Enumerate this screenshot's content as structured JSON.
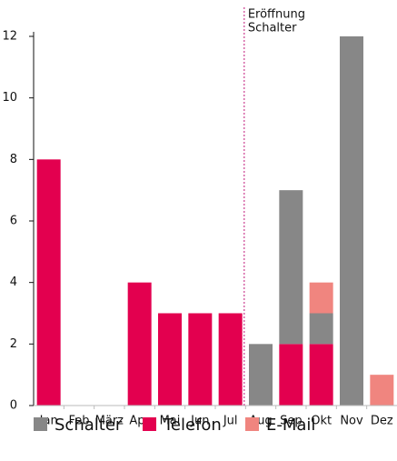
{
  "chart_data": {
    "type": "stacked_bar",
    "categories": [
      "Jan",
      "Feb",
      "März",
      "Apr",
      "Mai",
      "Jun",
      "Jul",
      "Aug",
      "Sep",
      "Okt",
      "Nov",
      "Dez"
    ],
    "series": [
      {
        "name": "Schalter",
        "color": "#878787",
        "values": [
          0,
          0,
          0,
          0,
          0,
          0,
          0,
          2,
          5,
          1,
          12,
          0
        ]
      },
      {
        "name": "Telefon",
        "color": "#e3004f",
        "values": [
          8,
          0,
          0,
          4,
          3,
          3,
          3,
          0,
          2,
          2,
          0,
          0
        ]
      },
      {
        "name": "E-Mail",
        "color": "#f0857f",
        "values": [
          0,
          0,
          0,
          0,
          0,
          0,
          0,
          0,
          0,
          1,
          0,
          1
        ]
      }
    ],
    "stack_order": [
      1,
      0,
      2
    ],
    "ylim": [
      0,
      12
    ],
    "yticks": [
      0,
      2,
      4,
      6,
      8,
      10,
      12
    ],
    "grid": false,
    "legend": "bottom",
    "annotation": {
      "lines": [
        "Eröffnung",
        "Schalter"
      ],
      "color": "#c2187a"
    }
  }
}
